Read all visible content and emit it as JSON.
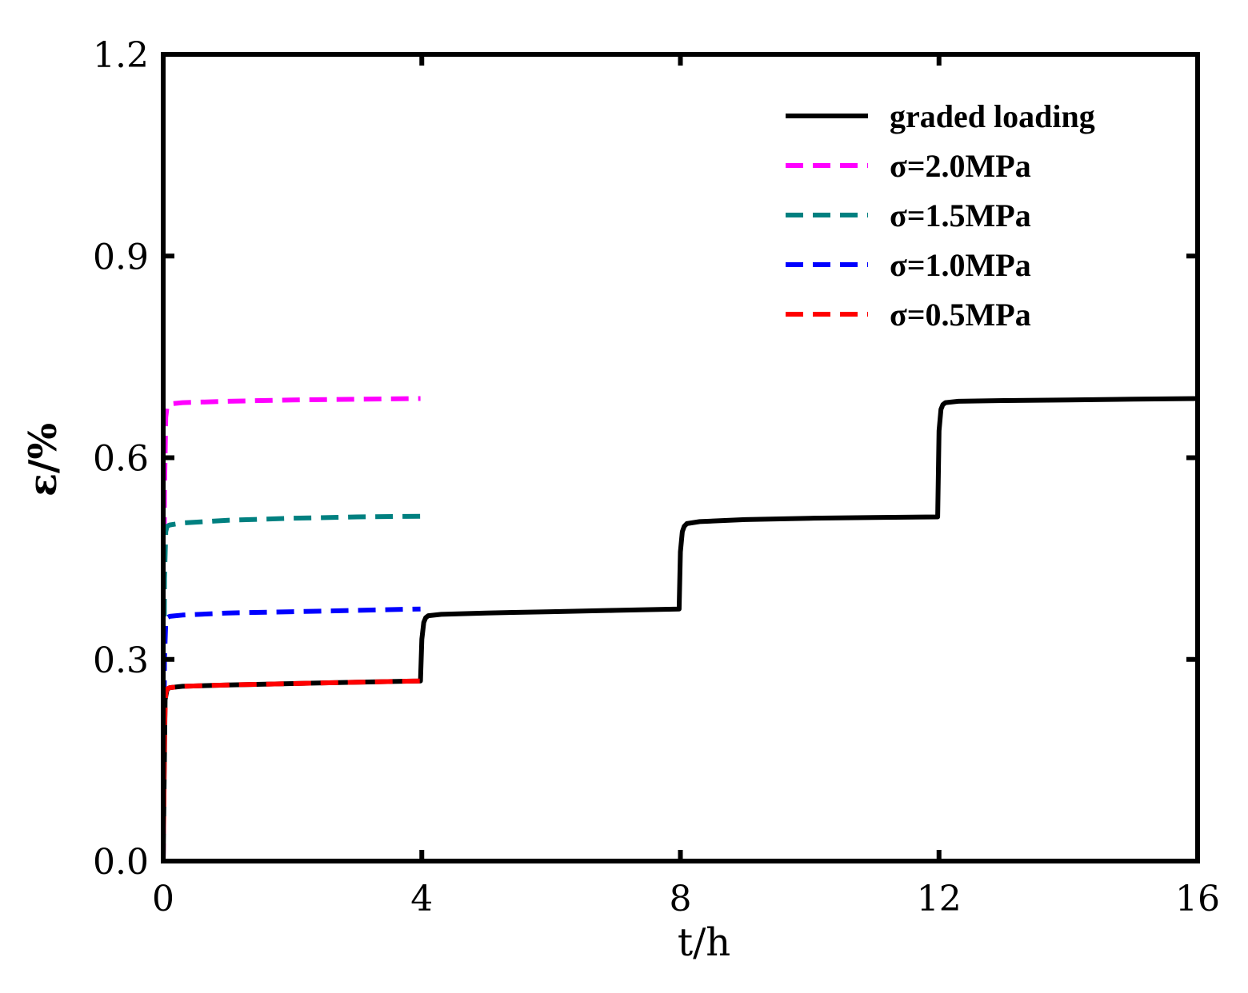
{
  "chart_data": {
    "type": "line",
    "title": "",
    "xlabel": "t/h",
    "ylabel": "ε/%",
    "xlim": [
      0,
      16
    ],
    "ylim": [
      0,
      1.2
    ],
    "xticks": [
      0,
      4,
      8,
      12,
      16
    ],
    "xtick_labels": [
      "0",
      "4",
      "8",
      "12",
      "16"
    ],
    "yticks": [
      0,
      0.3,
      0.6,
      0.9,
      1.2
    ],
    "ytick_labels": [
      "0.0",
      "0.3",
      "0.6",
      "0.9",
      "1.2"
    ],
    "grid": false,
    "legend_position": "top-right",
    "series": [
      {
        "name": "graded loading",
        "color": "#000000",
        "style": "solid",
        "x": [
          0,
          0.03,
          0.06,
          0.1,
          0.3,
          1,
          2,
          3,
          3.98,
          4.0,
          4.03,
          4.06,
          4.1,
          4.3,
          5,
          6,
          7,
          7.98,
          8.0,
          8.03,
          8.06,
          8.1,
          8.3,
          9,
          10,
          11,
          11.98,
          12.0,
          12.03,
          12.06,
          12.1,
          12.3,
          13,
          14,
          15,
          16
        ],
        "y": [
          0,
          0.24,
          0.255,
          0.258,
          0.26,
          0.262,
          0.264,
          0.266,
          0.268,
          0.33,
          0.355,
          0.362,
          0.365,
          0.367,
          0.369,
          0.371,
          0.373,
          0.375,
          0.46,
          0.49,
          0.498,
          0.502,
          0.505,
          0.508,
          0.51,
          0.511,
          0.512,
          0.64,
          0.672,
          0.679,
          0.682,
          0.684,
          0.685,
          0.686,
          0.687,
          0.688
        ]
      },
      {
        "name": "σ=2.0MPa",
        "color": "#ff00ff",
        "style": "dashed",
        "x": [
          0,
          0.02,
          0.04,
          0.06,
          0.1,
          0.3,
          1,
          2,
          3,
          3.98
        ],
        "y": [
          0,
          0.55,
          0.66,
          0.676,
          0.68,
          0.682,
          0.684,
          0.686,
          0.687,
          0.688
        ]
      },
      {
        "name": "σ=1.5MPa",
        "color": "#008080",
        "style": "dashed",
        "x": [
          0,
          0.02,
          0.04,
          0.06,
          0.1,
          0.3,
          1,
          2,
          3,
          3.98
        ],
        "y": [
          0,
          0.42,
          0.49,
          0.498,
          0.5,
          0.503,
          0.507,
          0.51,
          0.512,
          0.513
        ]
      },
      {
        "name": "σ=1.0MPa",
        "color": "#0000ff",
        "style": "dashed",
        "x": [
          0,
          0.02,
          0.04,
          0.06,
          0.1,
          0.3,
          1,
          2,
          3,
          3.98
        ],
        "y": [
          0,
          0.3,
          0.355,
          0.362,
          0.364,
          0.366,
          0.369,
          0.371,
          0.373,
          0.375
        ]
      },
      {
        "name": "σ=0.5MPa",
        "color": "#ff0000",
        "style": "dashed",
        "x": [
          0,
          0.02,
          0.04,
          0.06,
          0.1,
          0.3,
          1,
          2,
          3,
          3.98
        ],
        "y": [
          0,
          0.2,
          0.25,
          0.256,
          0.258,
          0.26,
          0.262,
          0.264,
          0.266,
          0.268
        ]
      }
    ]
  }
}
